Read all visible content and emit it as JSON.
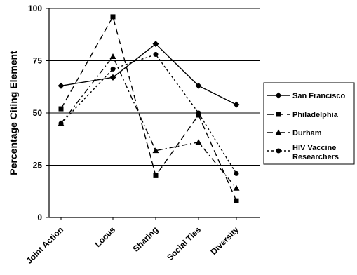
{
  "chart_data": {
    "type": "line",
    "title": "",
    "xlabel": "",
    "ylabel": "Percentage Citing Element",
    "ylim": [
      0,
      100
    ],
    "yticks": [
      0,
      25,
      50,
      75,
      100
    ],
    "grid": "horizontal lines at 25, 50, 75, 100",
    "legend_position": "right",
    "categories": [
      "Joint Action",
      "Locus",
      "Sharing",
      "Social Ties",
      "Diversity"
    ],
    "series": [
      {
        "name": "San Francisco",
        "marker": "diamond",
        "dash": "solid",
        "color": "#000000",
        "values": [
          63,
          67,
          83,
          63,
          54
        ]
      },
      {
        "name": "Philadelphia",
        "marker": "square",
        "dash": "long-dash",
        "color": "#000000",
        "values": [
          52,
          96,
          20,
          49,
          8
        ]
      },
      {
        "name": "Durham",
        "marker": "triangle",
        "dash": "dash-dot",
        "color": "#000000",
        "values": [
          45,
          77,
          32,
          36,
          14
        ]
      },
      {
        "name": "HIV Vaccine Researchers",
        "marker": "circle",
        "dash": "dotted",
        "color": "#000000",
        "values": [
          45,
          71,
          78,
          50,
          21
        ]
      }
    ]
  }
}
